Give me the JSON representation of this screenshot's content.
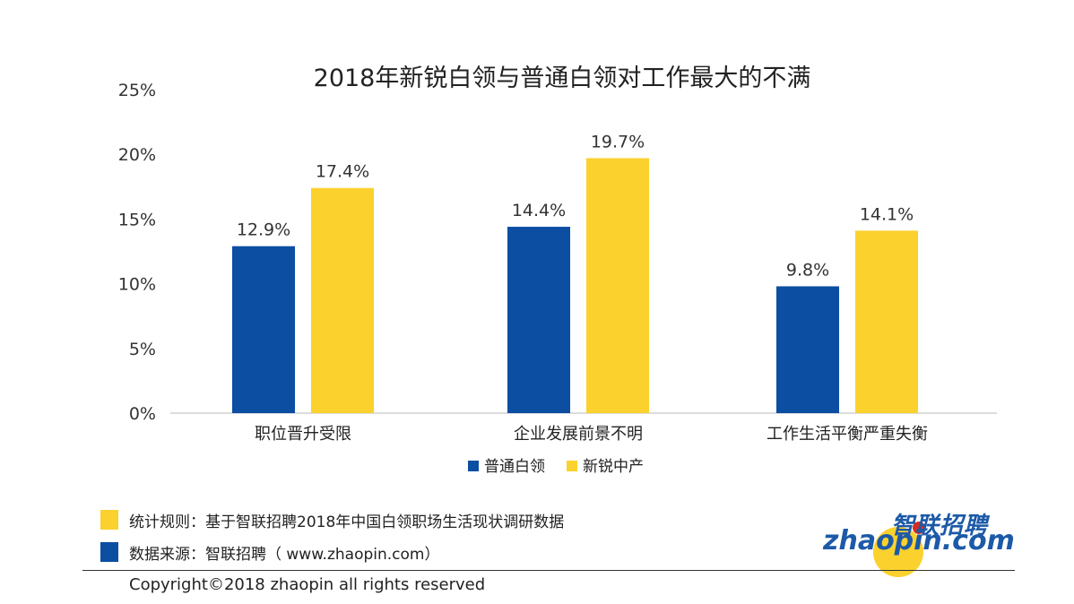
{
  "chart_data": {
    "type": "bar",
    "title": "2018年新锐白领与普通白领对工作最大的不满",
    "categories": [
      "职位晋升受限",
      "企业发展前景不明",
      "工作生活平衡严重失衡"
    ],
    "series": [
      {
        "name": "普通白领",
        "values": [
          12.9,
          14.4,
          9.8
        ],
        "color": "#0b4ea2"
      },
      {
        "name": "新锐中产",
        "values": [
          17.4,
          19.7,
          14.1
        ],
        "color": "#fbd12e"
      }
    ],
    "value_labels": [
      [
        "12.9%",
        "14.4%",
        "9.8%"
      ],
      [
        "17.4%",
        "19.7%",
        "14.1%"
      ]
    ],
    "ylim": [
      0,
      25
    ],
    "yticks": [
      "0%",
      "5%",
      "10%",
      "15%",
      "20%",
      "25%"
    ],
    "xlabel": "",
    "ylabel": "",
    "grid": false,
    "legend_position": "bottom"
  },
  "footer": {
    "rule_label": "统计规则：基于智联招聘2018年中国白领职场生活现状调研数据",
    "rule_color": "#fbd12e",
    "source_label": "数据来源：智联招聘（ www.zhaopin.com）",
    "source_color": "#0b4ea2",
    "copyright": "Copyright©2018 zhaopin all rights reserved"
  },
  "logo": {
    "cn_text": "智联招聘",
    "en_text": "zhaopin.com"
  }
}
